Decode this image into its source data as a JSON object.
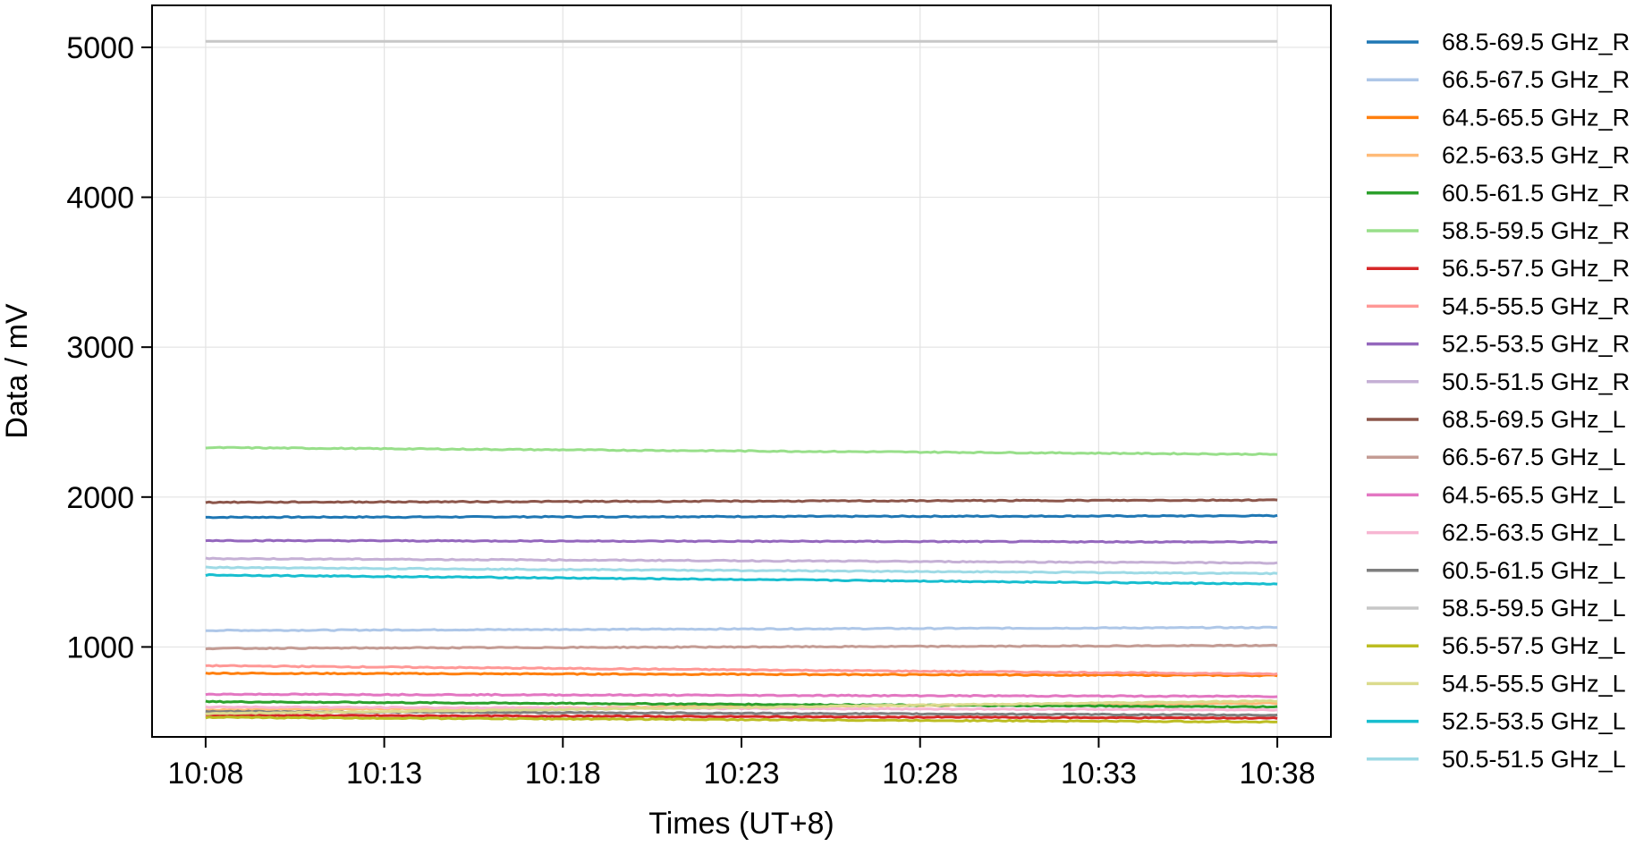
{
  "chart_data": {
    "type": "line",
    "title": "",
    "xlabel": "Times (UT+8)",
    "ylabel": "Data / mV",
    "x_ticks": [
      "10:08",
      "10:13",
      "10:18",
      "10:23",
      "10:28",
      "10:33",
      "10:38"
    ],
    "x_range_minutes": [
      8,
      38
    ],
    "xlim": [
      "10:06:30",
      "10:39:30"
    ],
    "ylim": [
      400,
      5280
    ],
    "y_ticks": [
      1000,
      2000,
      3000,
      4000,
      5000
    ],
    "grid": true,
    "legend_position": "outside-right",
    "series": [
      {
        "name": "68.5-69.5 GHz_R",
        "color": "#1f77b4",
        "start": 1865,
        "end": 1875
      },
      {
        "name": "66.5-67.5 GHz_R",
        "color": "#aec7e8",
        "start": 1110,
        "end": 1130
      },
      {
        "name": "64.5-65.5 GHz_R",
        "color": "#ff7f0e",
        "start": 825,
        "end": 810
      },
      {
        "name": "62.5-63.5 GHz_R",
        "color": "#ffbb78",
        "start": 580,
        "end": 625
      },
      {
        "name": "60.5-61.5 GHz_R",
        "color": "#2ca02c",
        "start": 635,
        "end": 600
      },
      {
        "name": "58.5-59.5 GHz_R",
        "color": "#98df8a",
        "start": 2330,
        "end": 2285
      },
      {
        "name": "56.5-57.5 GHz_R",
        "color": "#d62728",
        "start": 545,
        "end": 525
      },
      {
        "name": "54.5-55.5 GHz_R",
        "color": "#ff9896",
        "start": 875,
        "end": 820
      },
      {
        "name": "52.5-53.5 GHz_R",
        "color": "#9467bd",
        "start": 1710,
        "end": 1700
      },
      {
        "name": "50.5-51.5 GHz_R",
        "color": "#c5b0d5",
        "start": 1590,
        "end": 1560
      },
      {
        "name": "68.5-69.5 GHz_L",
        "color": "#8c564b",
        "start": 1965,
        "end": 1980
      },
      {
        "name": "66.5-67.5 GHz_L",
        "color": "#c49c94",
        "start": 990,
        "end": 1010
      },
      {
        "name": "64.5-65.5 GHz_L",
        "color": "#e377c2",
        "start": 685,
        "end": 670
      },
      {
        "name": "62.5-63.5 GHz_L",
        "color": "#f7b6d2",
        "start": 600,
        "end": 580
      },
      {
        "name": "60.5-61.5 GHz_L",
        "color": "#7f7f7f",
        "start": 570,
        "end": 545
      },
      {
        "name": "58.5-59.5 GHz_L",
        "color": "#c7c7c7",
        "start": 5040,
        "end": 5040
      },
      {
        "name": "56.5-57.5 GHz_L",
        "color": "#bcbd22",
        "start": 530,
        "end": 500
      },
      {
        "name": "54.5-55.5 GHz_L",
        "color": "#dbdb8d",
        "start": 555,
        "end": 640
      },
      {
        "name": "52.5-53.5 GHz_L",
        "color": "#17becf",
        "start": 1480,
        "end": 1420
      },
      {
        "name": "50.5-51.5 GHz_L",
        "color": "#9edae5",
        "start": 1530,
        "end": 1490
      }
    ]
  }
}
